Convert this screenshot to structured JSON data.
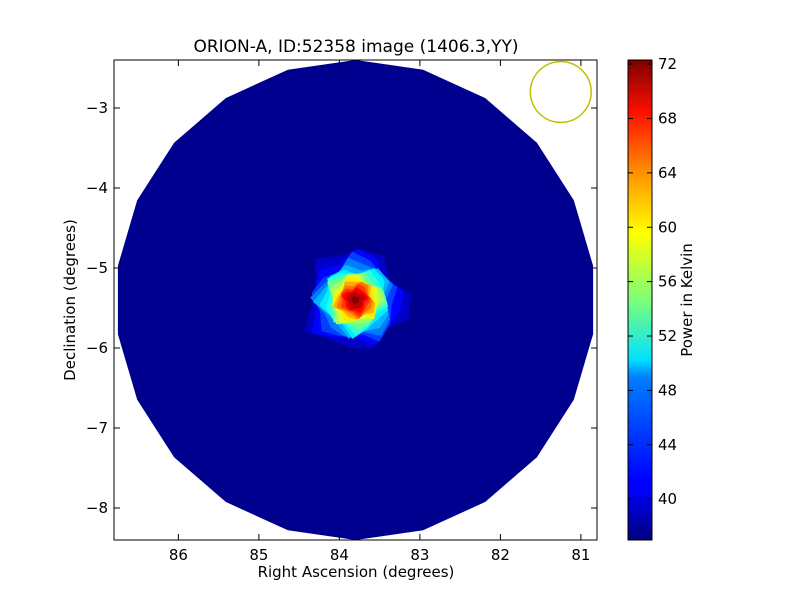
{
  "chart_data": {
    "type": "heatmap",
    "title": "ORION-A, ID:52358 image (1406.3,YY)",
    "xlabel": "Right Ascension (degrees)",
    "ylabel": "Declination (degrees)",
    "xlim": [
      86.8,
      80.8
    ],
    "ylim": [
      -8.4,
      -2.4
    ],
    "x_inverted": true,
    "xticks": [
      86,
      85,
      84,
      83,
      82,
      81
    ],
    "yticks": [
      -3,
      -4,
      -5,
      -6,
      -7,
      -8
    ],
    "xtick_labels": [
      "86",
      "85",
      "84",
      "83",
      "82",
      "81"
    ],
    "ytick_labels": [
      "−3",
      "−4",
      "−5",
      "−6",
      "−7",
      "−8"
    ],
    "map_region": {
      "shape": "polygon",
      "center": [
        83.8,
        -5.4
      ],
      "radius_deg": 3.0
    },
    "background_level": 37.5,
    "source": {
      "name_in_title": "ORION-A",
      "center": [
        83.8,
        -5.4
      ],
      "peak": 72,
      "fwhm_deg": 0.55
    },
    "beam_circle": {
      "center": [
        81.25,
        -2.8
      ],
      "radius_deg": 0.38,
      "color": "#bfbf00"
    },
    "colorbar": {
      "label": "Power in Kelvin",
      "vmin": 37,
      "vmax": 72.3,
      "colormap": "jet",
      "ticks": [
        40,
        44,
        48,
        52,
        56,
        60,
        64,
        68,
        72
      ],
      "tick_labels": [
        "40",
        "44",
        "48",
        "52",
        "56",
        "60",
        "64",
        "68",
        "72"
      ]
    },
    "grid": false
  }
}
